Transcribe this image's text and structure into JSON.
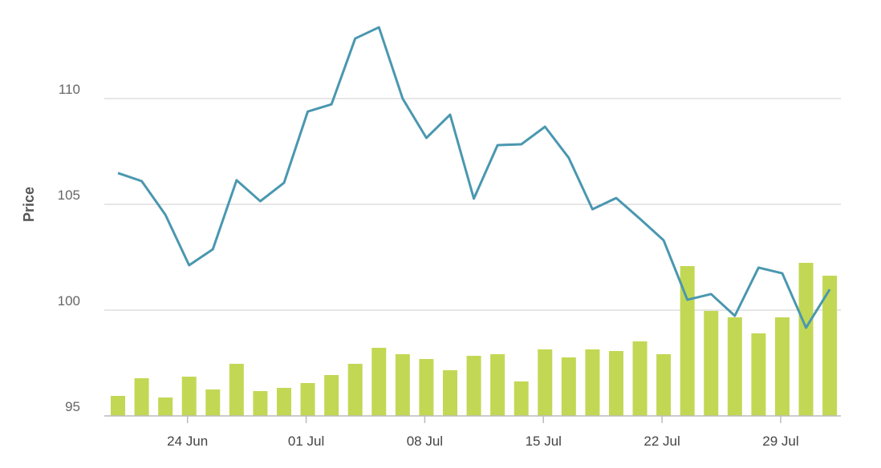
{
  "chart_data": {
    "type": "combo",
    "y_label": "Price",
    "categories": [
      null,
      null,
      null,
      "24 Jun",
      null,
      null,
      null,
      null,
      "01 Jul",
      null,
      null,
      null,
      null,
      "08 Jul",
      null,
      null,
      null,
      null,
      "15 Jul",
      null,
      null,
      null,
      null,
      "22 Jul",
      null,
      null,
      null,
      null,
      "29 Jul",
      null,
      null
    ],
    "series": [
      {
        "type": "bar",
        "axis": "y2",
        "color": "#c2d854",
        "values": [
          25,
          47,
          23,
          49,
          33,
          65,
          31,
          35,
          41,
          51,
          65,
          85,
          77,
          71,
          57,
          75,
          77,
          43,
          83,
          73,
          83,
          81,
          93,
          77,
          187,
          131,
          123,
          103,
          123,
          191,
          175
        ]
      },
      {
        "type": "line",
        "color": "#4a97b0",
        "values": [
          106.48,
          106.1,
          104.51,
          102.12,
          102.88,
          106.14,
          105.15,
          106.02,
          109.39,
          109.73,
          112.84,
          113.37,
          110.0,
          108.14,
          109.24,
          105.27,
          107.8,
          107.84,
          108.67,
          107.2,
          104.77,
          105.3,
          104.32,
          103.3,
          100.49,
          100.76,
          99.73,
          102.01,
          101.74,
          99.17,
          100.98
        ]
      }
    ],
    "ylim": [
      95,
      113.6
    ],
    "yticks": [
      95,
      100,
      105,
      110
    ],
    "y2lim": [
      0,
      491
    ],
    "grid": true
  }
}
